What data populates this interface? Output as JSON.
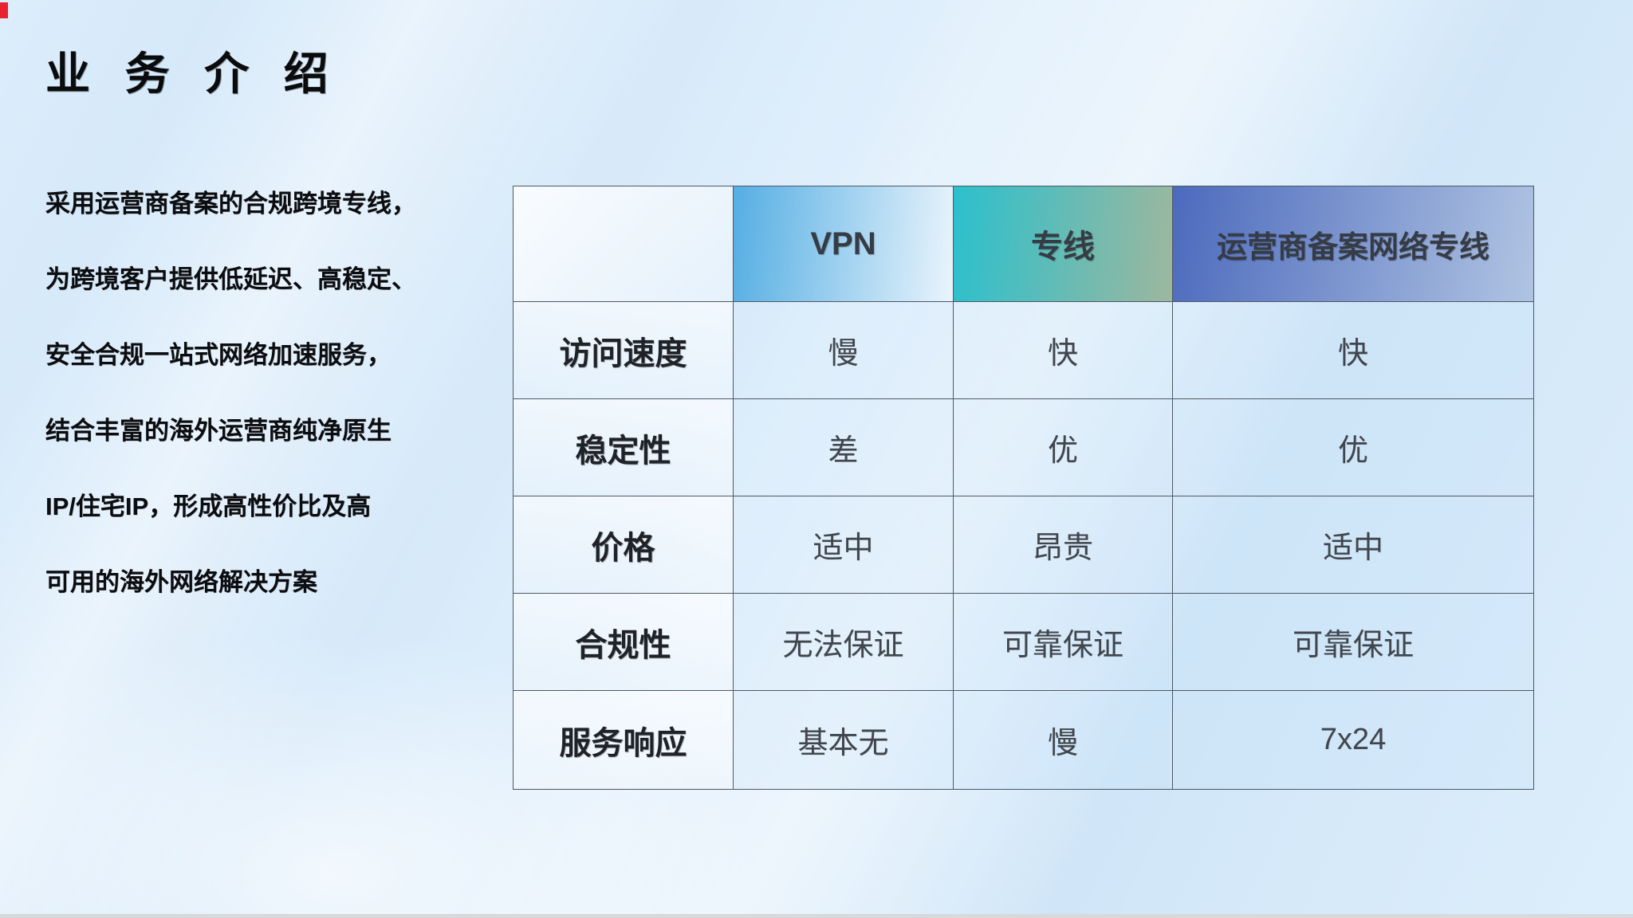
{
  "title": "业 务 介 绍",
  "intro_lines": [
    "采用运营商备案的合规跨境专线，",
    "为跨境客户提供低延迟、高稳定、",
    "安全合规一站式网络加速服务，",
    "结合丰富的海外运营商纯净原生",
    "IP/住宅IP，形成高性价比及高",
    "可用的海外网络解决方案"
  ],
  "table": {
    "columns": [
      "",
      "VPN",
      "专线",
      "运营商备案网络专线"
    ],
    "rows": [
      {
        "label": "访问速度",
        "values": [
          "慢",
          "快",
          "快"
        ]
      },
      {
        "label": "稳定性",
        "values": [
          "差",
          "优",
          "优"
        ]
      },
      {
        "label": "价格",
        "values": [
          "适中",
          "昂贵",
          "适中"
        ]
      },
      {
        "label": "合规性",
        "values": [
          "无法保证",
          "可靠保证",
          "可靠保证"
        ]
      },
      {
        "label": "服务响应",
        "values": [
          "基本无",
          "慢",
          "7x24"
        ]
      }
    ]
  },
  "colors": {
    "vpn_gradient_from": "#55AEE3",
    "vpn_gradient_to": "#EAF4FC",
    "dedicated_gradient_from": "#2BC0CD",
    "dedicated_gradient_to": "#9DB79E",
    "carrier_gradient_from": "#4C6ABD",
    "carrier_gradient_to": "#B0C4E2",
    "border": "#4E5864",
    "background": "#D7EAFA",
    "corner_mark_red": "#E8222E"
  }
}
